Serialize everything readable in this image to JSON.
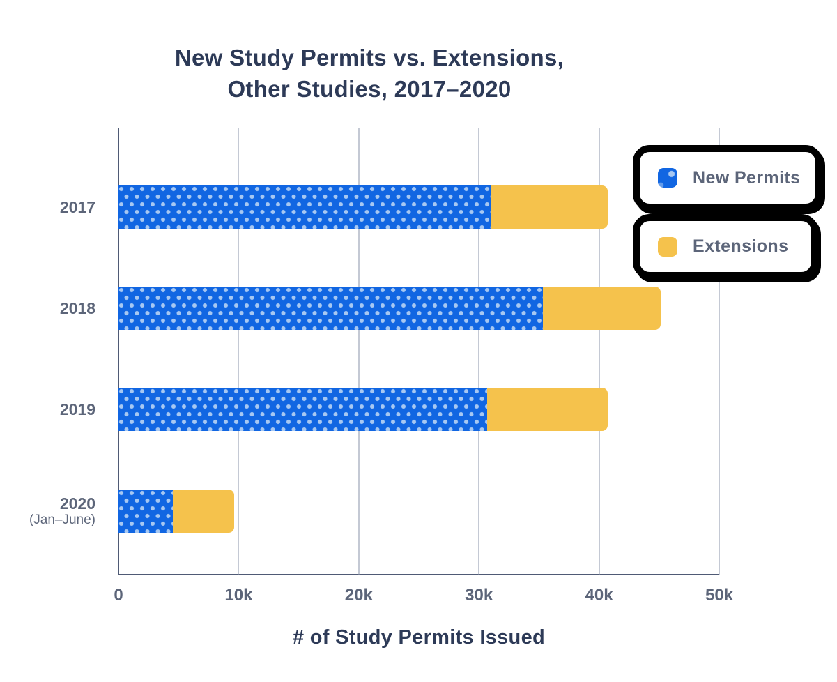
{
  "title": {
    "line1": "New Study Permits vs. Extensions,",
    "line2": "Other Studies, 2017–2020"
  },
  "chart_data": {
    "type": "bar",
    "orientation": "horizontal",
    "stacked": true,
    "title": "New Study Permits vs. Extensions, Other Studies, 2017–2020",
    "categories": [
      "2017",
      "2018",
      "2019",
      "2020 (Jan–June)"
    ],
    "series": [
      {
        "name": "New Permits",
        "color": "#1166e2",
        "pattern": "dots",
        "values": [
          31000,
          35300,
          30700,
          4500
        ]
      },
      {
        "name": "Extensions",
        "color": "#f5c24c",
        "pattern": "solid",
        "values": [
          9700,
          9800,
          10000,
          5100
        ]
      }
    ],
    "totals": [
      40700,
      45100,
      40700,
      9600
    ],
    "xlabel": "# of Study Permits Issued",
    "x_ticks": [
      {
        "value": 0,
        "label": "0"
      },
      {
        "value": 10000,
        "label": "10k"
      },
      {
        "value": 20000,
        "label": "20k"
      },
      {
        "value": 30000,
        "label": "30k"
      },
      {
        "value": 40000,
        "label": "40k"
      },
      {
        "value": 50000,
        "label": "50k"
      }
    ],
    "xlim": [
      0,
      50000
    ],
    "grid": true,
    "legend_position": "top-right"
  },
  "y_axis": {
    "labels": [
      {
        "main": "2017",
        "sub": ""
      },
      {
        "main": "2018",
        "sub": ""
      },
      {
        "main": "2019",
        "sub": ""
      },
      {
        "main": "2020",
        "sub": "(Jan–June)"
      }
    ]
  },
  "legend": {
    "items": [
      {
        "label": "New Permits",
        "swatch_color": "#1166e2",
        "swatch_pattern": "dots"
      },
      {
        "label": "Extensions",
        "swatch_color": "#f5c24c",
        "swatch_pattern": "solid"
      }
    ]
  },
  "colors": {
    "bar_blue": "#1166e2",
    "bar_blue_dot": "#a7c8f2",
    "bar_yellow": "#f5c24c",
    "title_text": "#2d3a57",
    "axis_text": "#5c6579",
    "gridline": "#8a93a8",
    "axis_line": "#4f5a75",
    "legend_border": "#000000",
    "background": "#ffffff"
  }
}
